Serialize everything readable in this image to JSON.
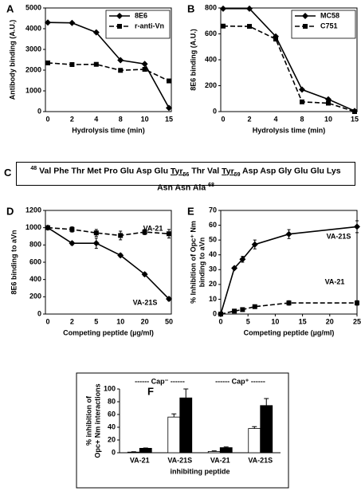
{
  "chart_data": [
    {
      "panel": "A",
      "type": "line",
      "x_label": "Hydrolysis time (min)",
      "y_label": [
        "Antibody binding (A.U.)"
      ],
      "categories": [
        "0",
        "2",
        "4",
        "8",
        "10",
        "15"
      ],
      "series": [
        {
          "name": "8E6",
          "color": "#000000",
          "dash": false,
          "marker": "diamond",
          "values": [
            4300,
            4280,
            3820,
            2480,
            2300,
            180
          ]
        },
        {
          "name": "r-anti-Vn",
          "color": "#000000",
          "dash": true,
          "marker": "square",
          "values": [
            2350,
            2270,
            2280,
            1990,
            2040,
            1480
          ]
        }
      ],
      "ylim": [
        0,
        5000
      ],
      "yticks": [
        0,
        1000,
        2000,
        3000,
        4000,
        5000
      ],
      "legend": "upper right"
    },
    {
      "panel": "B",
      "type": "line",
      "x_label": "Hydrolysis time (min)",
      "y_label": [
        "8E6 binding (A.U.)"
      ],
      "categories": [
        "0",
        "2",
        "4",
        "8",
        "10",
        "15"
      ],
      "series": [
        {
          "name": "MC58",
          "color": "#000000",
          "dash": false,
          "marker": "diamond",
          "values": [
            795,
            795,
            580,
            170,
            95,
            5
          ]
        },
        {
          "name": "C751",
          "color": "#000000",
          "dash": true,
          "marker": "square",
          "values": [
            660,
            658,
            560,
            75,
            65,
            0
          ]
        }
      ],
      "ylim": [
        0,
        800
      ],
      "yticks": [
        0,
        200,
        400,
        600,
        800
      ],
      "legend": "upper right"
    },
    {
      "panel": "D",
      "type": "line",
      "x_label": "Competing peptide (µg/ml)",
      "y_label": [
        "8E6 binding to aVn"
      ],
      "categories": [
        "0",
        "2",
        "5",
        "10",
        "20",
        "50"
      ],
      "series": [
        {
          "name": "VA-21",
          "color": "#000000",
          "dash": true,
          "marker": "square",
          "values": [
            1000,
            980,
            940,
            910,
            950,
            930
          ],
          "errors": [
            20,
            30,
            40,
            50,
            30,
            50
          ]
        },
        {
          "name": "VA-21S",
          "color": "#000000",
          "dash": false,
          "marker": "diamond",
          "values": [
            1000,
            820,
            820,
            680,
            460,
            175
          ],
          "errors": [
            20,
            20,
            60,
            20,
            20,
            20
          ]
        }
      ],
      "ylim": [
        0,
        1200
      ],
      "yticks": [
        0,
        200,
        400,
        600,
        800,
        1000,
        1200
      ]
    },
    {
      "panel": "E",
      "type": "line",
      "x_label": "Competing peptide (µg/ml)",
      "y_label": [
        "% Inhibition of Opc⁺ Nm",
        "binding to aVn"
      ],
      "x": [
        0,
        2.5,
        4,
        6.25,
        12.5,
        25
      ],
      "series": [
        {
          "name": "VA-21S",
          "color": "#000000",
          "dash": false,
          "marker": "diamond",
          "values": [
            0,
            31,
            37,
            47,
            54,
            59
          ],
          "errors": [
            0,
            1,
            2,
            3,
            3,
            4
          ]
        },
        {
          "name": "VA-21",
          "color": "#000000",
          "dash": true,
          "marker": "square",
          "values": [
            0,
            2,
            3,
            5,
            7.5,
            7.5
          ],
          "errors": [
            0,
            0.5,
            0.5,
            1,
            1.5,
            1.5
          ]
        }
      ],
      "xlim": [
        0,
        25
      ],
      "xticks": [
        0,
        5,
        10,
        15,
        20,
        25
      ],
      "ylim": [
        0,
        70
      ],
      "yticks": [
        0,
        10,
        20,
        30,
        40,
        50,
        60,
        70
      ]
    },
    {
      "panel": "F",
      "type": "bar",
      "x_label": "inhibiting peptide",
      "y_label": [
        "% inhibition of",
        "Opc+ Nm interactions"
      ],
      "categories": [
        "VA-21",
        "VA-21S",
        "VA-21",
        "VA-21S"
      ],
      "group_labels": [
        "------ Cap⁻ ------",
        "------ Cap⁺ ------"
      ],
      "series": [
        {
          "color": "#ffffff",
          "values": [
            1,
            56,
            2,
            38
          ],
          "errors": [
            0.5,
            5,
            1,
            3
          ]
        },
        {
          "color": "#000000",
          "values": [
            7,
            86,
            8,
            74
          ],
          "errors": [
            0.5,
            14,
            1,
            11
          ]
        }
      ],
      "ylim": [
        0,
        100
      ],
      "yticks": [
        0,
        20,
        40,
        60,
        80,
        100
      ]
    }
  ],
  "sequence_panel": {
    "panel": "C",
    "start": "48",
    "end": "68",
    "lines": [
      [
        "Val",
        "Phe",
        "Thr",
        "Met",
        "Pro",
        "Glu",
        "Asp",
        "Glu",
        {
          "residue": "Tyr",
          "position": "56"
        },
        "Thr",
        "Val",
        {
          "residue": "Tyr",
          "position": "59"
        },
        "Asp",
        "Asp",
        "Gly",
        "Glu",
        "Glu",
        "Lys"
      ],
      [
        "Asn",
        "Asn",
        "Ala"
      ]
    ]
  }
}
